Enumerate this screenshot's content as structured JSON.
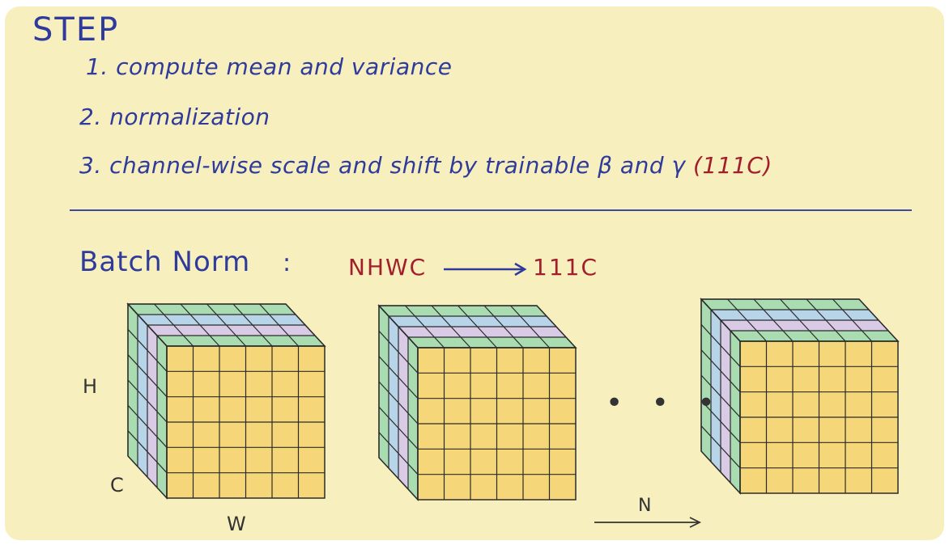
{
  "heading": "STEP",
  "steps": [
    {
      "number": "1.",
      "text": "compute mean and variance"
    },
    {
      "number": "2.",
      "text": "normalization"
    },
    {
      "number": "3.",
      "text": "channel-wise  scale and shift by trainable β and γ",
      "suffix": "(111C)"
    }
  ],
  "batch_norm": {
    "label": "Batch Norm",
    "colon": ":",
    "shape_from": "NHWC",
    "shape_to": "111C"
  },
  "dimensions": {
    "h": "H",
    "c": "C",
    "w": "W",
    "n": "N"
  },
  "ellipsis": "• • •",
  "cubes": {
    "count_shown": 3,
    "grid_rows": 6,
    "grid_cols": 6,
    "channel_layers": 4
  },
  "colors": {
    "background": "#f8efbf",
    "text_blue": "#2f3b9c",
    "text_red": "#a01f2b",
    "face_yellow": "#f5d77a",
    "channel_green": "#a9dcb0",
    "channel_blue": "#b8d4e8",
    "channel_purple": "#d9cbe6",
    "grid_line": "#2b2b2b"
  }
}
